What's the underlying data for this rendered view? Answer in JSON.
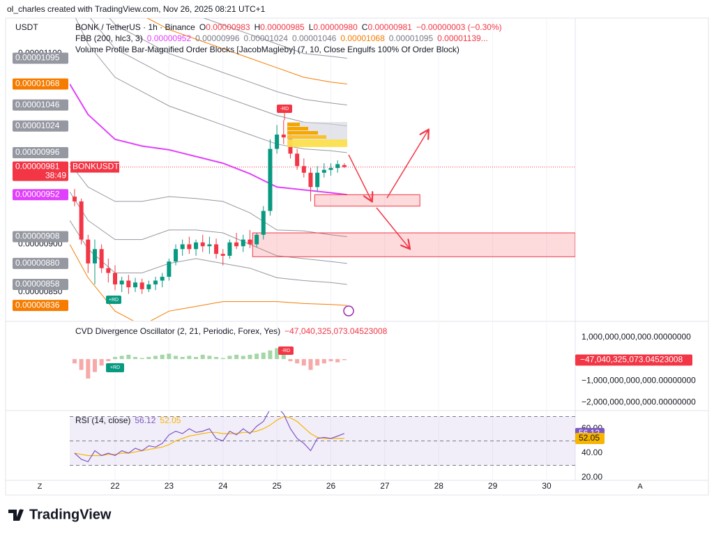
{
  "header": {
    "attribution": "ol_charles created with TradingView.com, Nov 26, 2025 08:21 UTC+1"
  },
  "footer": {
    "logo": "TradingView"
  },
  "controls": {
    "left": "Z",
    "right": "A"
  },
  "chart_data": [
    {
      "type": "candlestick",
      "currency": "USDT",
      "title": "BONK / TetherUS · 1h · Binance",
      "ohlc_legend": [
        {
          "key": "O",
          "label": "0.00000983"
        },
        {
          "key": "H",
          "label": "0.00000985"
        },
        {
          "key": "L",
          "label": "0.00000980"
        },
        {
          "key": "C",
          "label": "0.00000981"
        }
      ],
      "change": "−0.00000003 (−0.30%)",
      "fbb": {
        "title": "FBB (200, hlc3, 3)",
        "values": [
          {
            "label": "0.00000952",
            "color": "#e040fb"
          },
          {
            "label": "0.00000996",
            "color": "#787b86"
          },
          {
            "label": "0.00001024",
            "color": "#787b86"
          },
          {
            "label": "0.00001046",
            "color": "#787b86"
          },
          {
            "label": "0.00001068",
            "color": "#f57c00"
          },
          {
            "label": "0.00001095",
            "color": "#787b86"
          },
          {
            "label": "0.00001139...",
            "color": "#f23645"
          }
        ]
      },
      "volume_profile": "Volume Profile Bar-Magnified Order Blocks [JacobMagleby] (7, 10, Close Engulfs 100% Of Order Block)",
      "up_color": "#089981",
      "down_color": "#f23645",
      "x": [
        21.25,
        21.375,
        21.5,
        21.625,
        21.75,
        21.875,
        22,
        22.125,
        22.25,
        22.375,
        22.5,
        22.625,
        22.75,
        22.875,
        23,
        23.125,
        23.25,
        23.375,
        23.5,
        23.625,
        23.75,
        23.875,
        24,
        24.125,
        24.25,
        24.375,
        24.5,
        24.625,
        24.75,
        24.875,
        25,
        25.125,
        25.25,
        25.375,
        25.5,
        25.625,
        25.75,
        25.875,
        26,
        26.125,
        26.25
      ],
      "open": [
        9.5e-06,
        9.45e-06,
        9.05e-06,
        8.8e-06,
        8.95e-06,
        8.75e-06,
        8.7e-06,
        8.58e-06,
        8.62e-06,
        8.55e-06,
        8.6e-06,
        8.53e-06,
        8.58e-06,
        8.62e-06,
        8.66e-06,
        8.82e-06,
        8.95e-06,
        9e-06,
        8.95e-06,
        9.02e-06,
        8.98e-06,
        9e-06,
        8.9e-06,
        8.88e-06,
        9.02e-06,
        8.98e-06,
        9.05e-06,
        9e-06,
        9.1e-06,
        9.35e-06,
        1e-05,
        1.015e-05,
        1.012e-05,
        9.95e-06,
        9.82e-06,
        9.75e-06,
        9.6e-06,
        9.75e-06,
        9.78e-06,
        9.8e-06,
        9.83e-06
      ],
      "high": [
        9.58e-06,
        9.48e-06,
        9.1e-06,
        9.05e-06,
        9e-06,
        8.85e-06,
        8.78e-06,
        8.66e-06,
        8.68e-06,
        8.65e-06,
        8.64e-06,
        8.62e-06,
        8.66e-06,
        8.7e-06,
        8.85e-06,
        9e-06,
        9.05e-06,
        9.08e-06,
        9.05e-06,
        9.1e-06,
        9.08e-06,
        9.06e-06,
        8.95e-06,
        9.05e-06,
        9.12e-06,
        9.1e-06,
        9.15e-06,
        9.12e-06,
        9.4e-06,
        1.01e-05,
        1.025e-05,
        1.03e-05,
        1.018e-05,
        1e-05,
        9.9e-06,
        9.8e-06,
        9.82e-06,
        9.85e-06,
        9.85e-06,
        9.88e-06,
        9.85e-06
      ],
      "low": [
        9.4e-06,
        9e-06,
        8.7e-06,
        8.58e-06,
        8.7e-06,
        8.6e-06,
        8.52e-06,
        8.5e-06,
        8.48e-06,
        8.5e-06,
        8.48e-06,
        8.5e-06,
        8.52e-06,
        8.55e-06,
        8.62e-06,
        8.78e-06,
        8.88e-06,
        8.9e-06,
        8.88e-06,
        8.92e-06,
        8.9e-06,
        8.85e-06,
        8.78e-06,
        8.85e-06,
        8.95e-06,
        8.92e-06,
        8.96e-06,
        8.97e-06,
        9.05e-06,
        9.3e-06,
        9.95e-06,
        1.005e-05,
        9.9e-06,
        9.78e-06,
        9.7e-06,
        9.45e-06,
        9.55e-06,
        9.7e-06,
        9.72e-06,
        9.75e-06,
        9.8e-06
      ],
      "close": [
        9.45e-06,
        9.05e-06,
        8.8e-06,
        8.95e-06,
        8.75e-06,
        8.7e-06,
        8.58e-06,
        8.62e-06,
        8.55e-06,
        8.6e-06,
        8.53e-06,
        8.58e-06,
        8.62e-06,
        8.66e-06,
        8.82e-06,
        8.95e-06,
        9e-06,
        8.95e-06,
        9.02e-06,
        8.98e-06,
        9e-06,
        8.9e-06,
        8.88e-06,
        9.02e-06,
        8.98e-06,
        9.05e-06,
        9e-06,
        9.1e-06,
        9.35e-06,
        1e-05,
        1.015e-05,
        1.012e-05,
        9.95e-06,
        9.82e-06,
        9.75e-06,
        9.6e-06,
        9.75e-06,
        9.78e-06,
        9.8e-06,
        9.84e-06,
        9.81e-06
      ],
      "bands": {
        "x": [
          21.16,
          21.5,
          22,
          22.5,
          23,
          23.5,
          24,
          24.5,
          25,
          25.5,
          26,
          26.3
        ],
        "series": [
          {
            "color": "#9598a1",
            "values": [
              1.26e-05,
              1.22e-05,
              1.18e-05,
              1.165e-05,
              1.15e-05,
              1.14e-05,
              1.13e-05,
              1.12e-05,
              1.11e-05,
              1.1e-05,
              1.097e-05,
              1.095e-05
            ]
          },
          {
            "color": "#f57c00",
            "values": [
              1.23e-05,
              1.19e-05,
              1.155e-05,
              1.14e-05,
              1.125e-05,
              1.115e-05,
              1.105e-05,
              1.095e-05,
              1.085e-05,
              1.075e-05,
              1.07e-05,
              1.068e-05
            ]
          },
          {
            "color": "#9598a1",
            "values": [
              1.2e-05,
              1.165e-05,
              1.13e-05,
              1.115e-05,
              1.1e-05,
              1.09e-05,
              1.08e-05,
              1.07e-05,
              1.06e-05,
              1.052e-05,
              1.048e-05,
              1.046e-05
            ]
          },
          {
            "color": "#9598a1",
            "values": [
              1.18e-05,
              1.14e-05,
              1.105e-05,
              1.09e-05,
              1.075e-05,
              1.065e-05,
              1.055e-05,
              1.045e-05,
              1.035e-05,
              1.028e-05,
              1.026e-05,
              1.024e-05
            ]
          },
          {
            "color": "#9598a1",
            "values": [
              1.15e-05,
              1.11e-05,
              1.075e-05,
              1.06e-05,
              1.045e-05,
              1.035e-05,
              1.025e-05,
              1.015e-05,
              1.005e-05,
              1e-05,
              9.98e-06,
              9.96e-06
            ]
          },
          {
            "color": "#e040fb",
            "values": [
              1.068e-05,
              1.036e-05,
              1.01e-05,
              1.003e-05,
              9.99e-06,
              9.92e-06,
              9.85e-06,
              9.74e-06,
              9.6e-06,
              9.57e-06,
              9.54e-06,
              9.52e-06
            ]
          },
          {
            "color": "#9598a1",
            "values": [
              9.85e-06,
              9.6e-06,
              9.45e-06,
              9.45e-06,
              9.5e-06,
              9.48e-06,
              9.45e-06,
              9.33e-06,
              9.15e-06,
              9.14e-06,
              9.1e-06,
              9.08e-06
            ]
          },
          {
            "color": "#9598a1",
            "values": [
              9.55e-06,
              9.25e-06,
              9.05e-06,
              9.05e-06,
              9.15e-06,
              9.15e-06,
              9.12e-06,
              9e-06,
              8.88e-06,
              8.85e-06,
              8.82e-06,
              8.8e-06
            ]
          },
          {
            "color": "#9598a1",
            "values": [
              9.25e-06,
              8.95e-06,
              8.7e-06,
              8.7e-06,
              8.8e-06,
              8.85e-06,
              8.8e-06,
              8.75e-06,
              8.65e-06,
              8.62e-06,
              8.6e-06,
              8.58e-06
            ]
          },
          {
            "color": "#f57c00",
            "values": [
              9e-06,
              8.65e-06,
              8.3e-06,
              8.15e-06,
              8.3e-06,
              8.35e-06,
              8.4e-06,
              8.4e-06,
              8.4e-06,
              8.38e-06,
              8.37e-06,
              8.36e-06
            ]
          }
        ]
      },
      "zones": [
        {
          "x": [
            25.7,
            27.65
          ],
          "y": [
            9.4e-06,
            9.52e-06
          ]
        },
        {
          "x": [
            24.55,
            30.53
          ],
          "y": [
            8.87e-06,
            9.12e-06
          ]
        }
      ],
      "markers": [
        "-RD",
        "+RD"
      ],
      "price_labels": [
        {
          "value": 1.095e-05,
          "label": "0.00001095",
          "color": "#9598a1"
        },
        {
          "value": 1.068e-05,
          "label": "0.00001068",
          "color": "#f57c00"
        },
        {
          "value": 1.046e-05,
          "label": "0.00001046",
          "color": "#9598a1"
        },
        {
          "value": 1.024e-05,
          "label": "0.00001024",
          "color": "#9598a1"
        },
        {
          "value": 9.96e-06,
          "label": "0.00000996",
          "color": "#9598a1"
        },
        {
          "value": 9.52e-06,
          "label": "0.00000952",
          "color": "#e040fb"
        },
        {
          "value": 9.08e-06,
          "label": "0.00000908",
          "color": "#9598a1"
        },
        {
          "value": 8.8e-06,
          "label": "0.00000880",
          "color": "#9598a1"
        },
        {
          "value": 8.58e-06,
          "label": "0.00000858",
          "color": "#9598a1"
        },
        {
          "value": 8.36e-06,
          "label": "0.00000836",
          "color": "#f57c00"
        }
      ],
      "last_price": {
        "value": 9.81e-06,
        "label": "0.00000981",
        "countdown": "38:49",
        "symbol": "BONKUSDT",
        "color": "#f23645"
      },
      "xlim": [
        21.16,
        30.53
      ],
      "ylim": [
        8.2e-06,
        1.137e-05
      ],
      "yticks": [
        {
          "value": 8.5e-06,
          "label": "0.00000850"
        },
        {
          "value": 9e-06,
          "label": "0.00000900"
        },
        {
          "value": 1.1e-05,
          "label": "0.00001100"
        }
      ]
    },
    {
      "type": "histogram",
      "title": "CVD Divergence Oscillator (2, 21, Periodic, Forex, Yes)",
      "last_value_label": "−47,040,325,073.04523008",
      "pos_color": "#a5d6a7",
      "neg_color": "#f7a9a9",
      "markers": [
        "-RD",
        "+RD"
      ],
      "x": [
        21.25,
        21.375,
        21.5,
        21.625,
        21.75,
        21.875,
        22,
        22.125,
        22.25,
        22.375,
        22.5,
        22.625,
        22.75,
        22.875,
        23,
        23.125,
        23.25,
        23.375,
        23.5,
        23.625,
        23.75,
        23.875,
        24,
        24.125,
        24.25,
        24.375,
        24.5,
        24.625,
        24.75,
        24.875,
        25,
        25.125,
        25.25,
        25.375,
        25.5,
        25.625,
        25.75,
        25.875,
        26,
        26.125,
        26.25
      ],
      "values": [
        -200000000000,
        -500000000000,
        -900000000000,
        -600000000000,
        -300000000000,
        -100000000000,
        100000000000,
        150000000000,
        200000000000,
        100000000000,
        50000000000,
        100000000000,
        150000000000,
        200000000000,
        250000000000,
        150000000000,
        100000000000,
        150000000000,
        100000000000,
        200000000000,
        150000000000,
        100000000000,
        50000000000,
        150000000000,
        200000000000,
        150000000000,
        200000000000,
        250000000000,
        300000000000,
        400000000000,
        500000000000,
        200000000000,
        -100000000000,
        -200000000000,
        -300000000000,
        -500000000000,
        -300000000000,
        -200000000000,
        -100000000000,
        -150000000000,
        -47040325073.04523
      ],
      "xlim": [
        21.16,
        30.53
      ],
      "ylim": [
        -2350000000000,
        1710000000000
      ],
      "yticks": [
        {
          "value": 1000000000000,
          "label": "1,000,000,000,000.00000000"
        },
        {
          "value": -1000000000000,
          "label": "−1,000,000,000,000.00000000"
        },
        {
          "value": -2000000000000,
          "label": "−2,000,000,000,000.00000000"
        }
      ]
    },
    {
      "type": "line",
      "title": "RSI (14, close)",
      "x": [
        21.25,
        21.375,
        21.5,
        21.625,
        21.75,
        21.875,
        22,
        22.125,
        22.25,
        22.375,
        22.5,
        22.625,
        22.75,
        22.875,
        23,
        23.125,
        23.25,
        23.375,
        23.5,
        23.625,
        23.75,
        23.875,
        24,
        24.125,
        24.25,
        24.375,
        24.5,
        24.625,
        24.75,
        24.875,
        25,
        25.125,
        25.25,
        25.375,
        25.5,
        25.625,
        25.75,
        25.875,
        26,
        26.125,
        26.25
      ],
      "series": [
        {
          "color": "#7e57c2",
          "values": [
            40,
            35,
            33,
            42,
            38,
            40,
            38,
            42,
            40,
            44,
            42,
            46,
            45,
            48,
            55,
            58,
            56,
            60,
            57,
            58,
            60,
            52,
            50,
            58,
            55,
            60,
            56,
            62,
            66,
            76,
            78,
            72,
            60,
            52,
            48,
            42,
            52,
            53,
            52,
            54,
            56.12
          ]
        },
        {
          "color": "#f7b500",
          "values": [
            40,
            39,
            38,
            38,
            38,
            39,
            39,
            40,
            40,
            41,
            42,
            43,
            44,
            45,
            47,
            50,
            52,
            54,
            55,
            56,
            57,
            57,
            56,
            56,
            56,
            57,
            57,
            58,
            60,
            63,
            67,
            70,
            69,
            66,
            61,
            56,
            53,
            52,
            52,
            52,
            52.05
          ]
        }
      ],
      "levels": [
        70,
        50,
        30
      ],
      "xlim": [
        21.16,
        30.53
      ],
      "ylim": [
        18.3,
        74.3
      ],
      "yticks": [
        {
          "value": 60,
          "label": "60.00"
        },
        {
          "value": 40,
          "label": "40.00"
        },
        {
          "value": 20,
          "label": "20.00"
        }
      ],
      "xticks": [
        22,
        23,
        24,
        25,
        26,
        27,
        28,
        29,
        30
      ]
    }
  ]
}
